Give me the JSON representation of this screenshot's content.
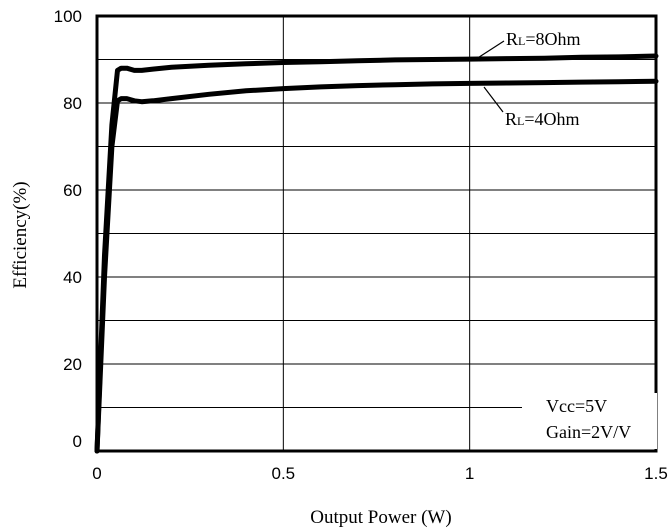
{
  "chart_data": {
    "type": "line",
    "xlabel": "Output Power (W)",
    "ylabel": "Efficiency(%)",
    "xlim": [
      0,
      1.5
    ],
    "ylim": [
      0,
      100
    ],
    "x_ticks": [
      "0",
      "0.5",
      "1",
      "1.5"
    ],
    "y_ticks": [
      "0",
      "20",
      "40",
      "60",
      "80",
      "100"
    ],
    "grid": true,
    "series": [
      {
        "name": "RL=8Ohm",
        "label_main": "R",
        "label_sub": "L",
        "label_rest": "=8Ohm",
        "x": [
          0,
          0.02,
          0.04,
          0.055,
          0.065,
          0.08,
          0.1,
          0.12,
          0.15,
          0.2,
          0.3,
          0.4,
          0.5,
          0.6,
          0.7,
          0.8,
          0.9,
          1.0,
          1.1,
          1.2,
          1.3,
          1.4,
          1.5
        ],
        "y": [
          0,
          45,
          75,
          87.5,
          88,
          88,
          87.5,
          87.5,
          87.8,
          88.2,
          88.7,
          89,
          89.3,
          89.5,
          89.7,
          89.9,
          90,
          90.1,
          90.2,
          90.3,
          90.5,
          90.6,
          90.8
        ]
      },
      {
        "name": "RL=4Ohm",
        "label_main": "R",
        "label_sub": "L",
        "label_rest": "=4Ohm",
        "x": [
          0,
          0.02,
          0.04,
          0.055,
          0.065,
          0.08,
          0.1,
          0.12,
          0.15,
          0.2,
          0.3,
          0.4,
          0.5,
          0.6,
          0.7,
          0.8,
          0.9,
          1.0,
          1.1,
          1.2,
          1.3,
          1.4,
          1.5
        ],
        "y": [
          0,
          40,
          70,
          80.5,
          81,
          81,
          80.5,
          80.3,
          80.5,
          81,
          82,
          82.8,
          83.3,
          83.7,
          84,
          84.2,
          84.4,
          84.5,
          84.6,
          84.7,
          84.8,
          84.9,
          85
        ]
      }
    ],
    "conditions": [
      "Vcc=5V",
      "Gain=2V/V"
    ]
  }
}
